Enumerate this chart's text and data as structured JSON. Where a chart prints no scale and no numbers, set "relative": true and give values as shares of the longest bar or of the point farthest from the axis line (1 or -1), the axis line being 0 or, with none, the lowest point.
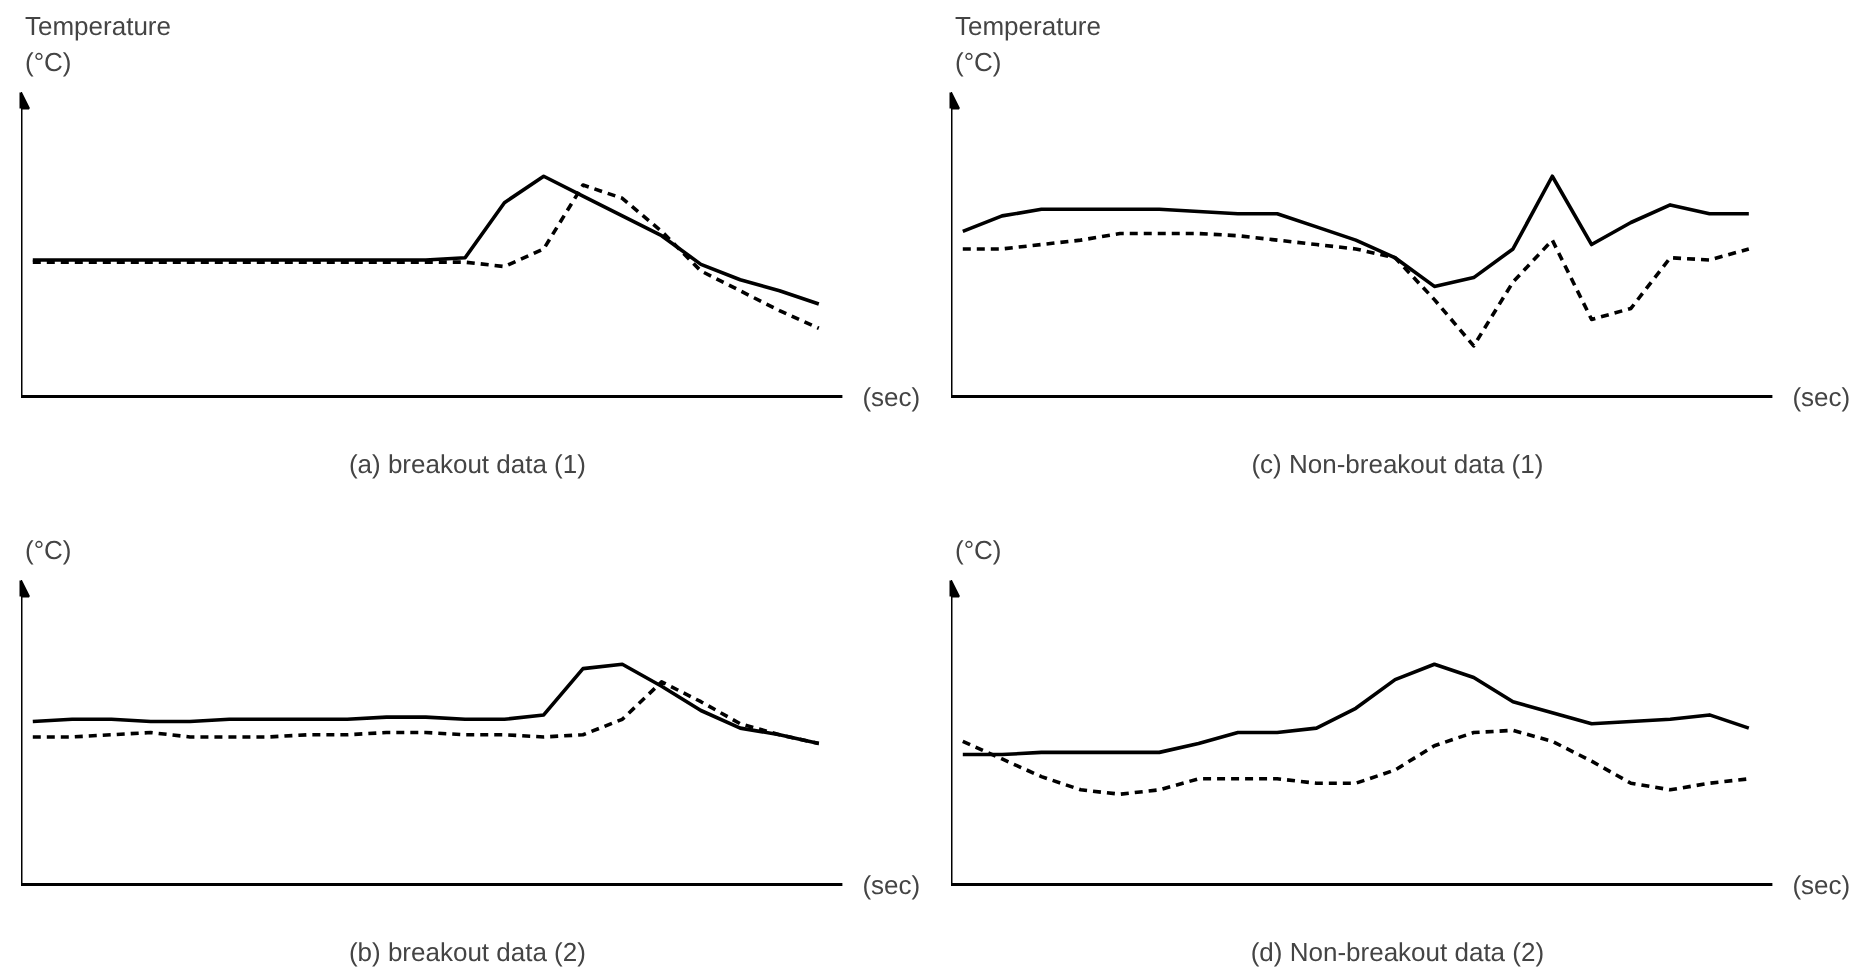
{
  "chart_data": [
    {
      "type": "line",
      "title": "(a)  breakout data (1)",
      "ylabel": "Temperature (°C)",
      "xlabel": "(sec)",
      "relative": true,
      "tick_labels": false,
      "grid": false,
      "categories": [
        null,
        null,
        null,
        null,
        null,
        null,
        null,
        null,
        null,
        null,
        null,
        null,
        null,
        null,
        null,
        null,
        null,
        null,
        null,
        null,
        null
      ],
      "series": [
        {
          "color": "#000000",
          "line_style": "solid",
          "values": [
            0.62,
            0.62,
            0.62,
            0.62,
            0.62,
            0.62,
            0.62,
            0.62,
            0.62,
            0.62,
            0.62,
            0.63,
            0.88,
            1.0,
            0.91,
            0.82,
            0.73,
            0.6,
            0.53,
            0.48,
            0.42
          ]
        },
        {
          "color": "#000000",
          "line_style": "dashed",
          "values": [
            0.61,
            0.61,
            0.61,
            0.61,
            0.61,
            0.61,
            0.61,
            0.61,
            0.61,
            0.61,
            0.61,
            0.61,
            0.59,
            0.67,
            0.96,
            0.9,
            0.75,
            0.57,
            0.48,
            0.39,
            0.31
          ]
        }
      ]
    },
    {
      "type": "line",
      "title": "(c)  Non-breakout data (1)",
      "ylabel": "Temperature (°C)",
      "xlabel": "(sec)",
      "relative": true,
      "tick_labels": false,
      "grid": false,
      "categories": [
        null,
        null,
        null,
        null,
        null,
        null,
        null,
        null,
        null,
        null,
        null,
        null,
        null,
        null,
        null,
        null,
        null,
        null,
        null,
        null,
        null
      ],
      "series": [
        {
          "color": "#000000",
          "line_style": "solid",
          "values": [
            0.75,
            0.82,
            0.85,
            0.85,
            0.85,
            0.85,
            0.84,
            0.83,
            0.83,
            0.77,
            0.71,
            0.63,
            0.5,
            0.54,
            0.67,
            1.0,
            0.69,
            0.79,
            0.87,
            0.83,
            0.83
          ]
        },
        {
          "color": "#000000",
          "line_style": "dashed",
          "values": [
            0.67,
            0.67,
            0.69,
            0.71,
            0.74,
            0.74,
            0.74,
            0.73,
            0.71,
            0.69,
            0.67,
            0.63,
            0.44,
            0.23,
            0.52,
            0.71,
            0.35,
            0.4,
            0.63,
            0.62,
            0.67
          ]
        }
      ]
    },
    {
      "type": "line",
      "title": "(b)  breakout data (2)",
      "ylabel": "(°C)",
      "xlabel": "(sec)",
      "relative": true,
      "tick_labels": false,
      "grid": false,
      "categories": [
        null,
        null,
        null,
        null,
        null,
        null,
        null,
        null,
        null,
        null,
        null,
        null,
        null,
        null,
        null,
        null,
        null,
        null,
        null,
        null,
        null
      ],
      "series": [
        {
          "color": "#000000",
          "line_style": "solid",
          "values": [
            0.74,
            0.75,
            0.75,
            0.74,
            0.74,
            0.75,
            0.75,
            0.75,
            0.75,
            0.76,
            0.76,
            0.75,
            0.75,
            0.77,
            0.98,
            1.0,
            0.9,
            0.79,
            0.71,
            0.68,
            0.64
          ]
        },
        {
          "color": "#000000",
          "line_style": "dashed",
          "values": [
            0.67,
            0.67,
            0.68,
            0.69,
            0.67,
            0.67,
            0.67,
            0.68,
            0.68,
            0.69,
            0.69,
            0.68,
            0.68,
            0.67,
            0.68,
            0.75,
            0.92,
            0.83,
            0.73,
            0.68,
            0.64
          ]
        }
      ]
    },
    {
      "type": "line",
      "title": "(d)  Non-breakout data (2)",
      "ylabel": "(°C)",
      "xlabel": "(sec)",
      "relative": true,
      "tick_labels": false,
      "grid": false,
      "categories": [
        null,
        null,
        null,
        null,
        null,
        null,
        null,
        null,
        null,
        null,
        null,
        null,
        null,
        null,
        null,
        null,
        null,
        null,
        null,
        null,
        null
      ],
      "series": [
        {
          "color": "#000000",
          "line_style": "solid",
          "values": [
            0.59,
            0.59,
            0.6,
            0.6,
            0.6,
            0.6,
            0.64,
            0.69,
            0.69,
            0.71,
            0.8,
            0.93,
            1.0,
            0.94,
            0.83,
            0.78,
            0.73,
            0.74,
            0.75,
            0.77,
            0.71
          ]
        },
        {
          "color": "#000000",
          "line_style": "dashed",
          "values": [
            0.65,
            0.57,
            0.49,
            0.43,
            0.41,
            0.43,
            0.48,
            0.48,
            0.48,
            0.46,
            0.46,
            0.52,
            0.63,
            0.69,
            0.7,
            0.65,
            0.56,
            0.46,
            0.43,
            0.46,
            0.48
          ]
        }
      ]
    }
  ]
}
